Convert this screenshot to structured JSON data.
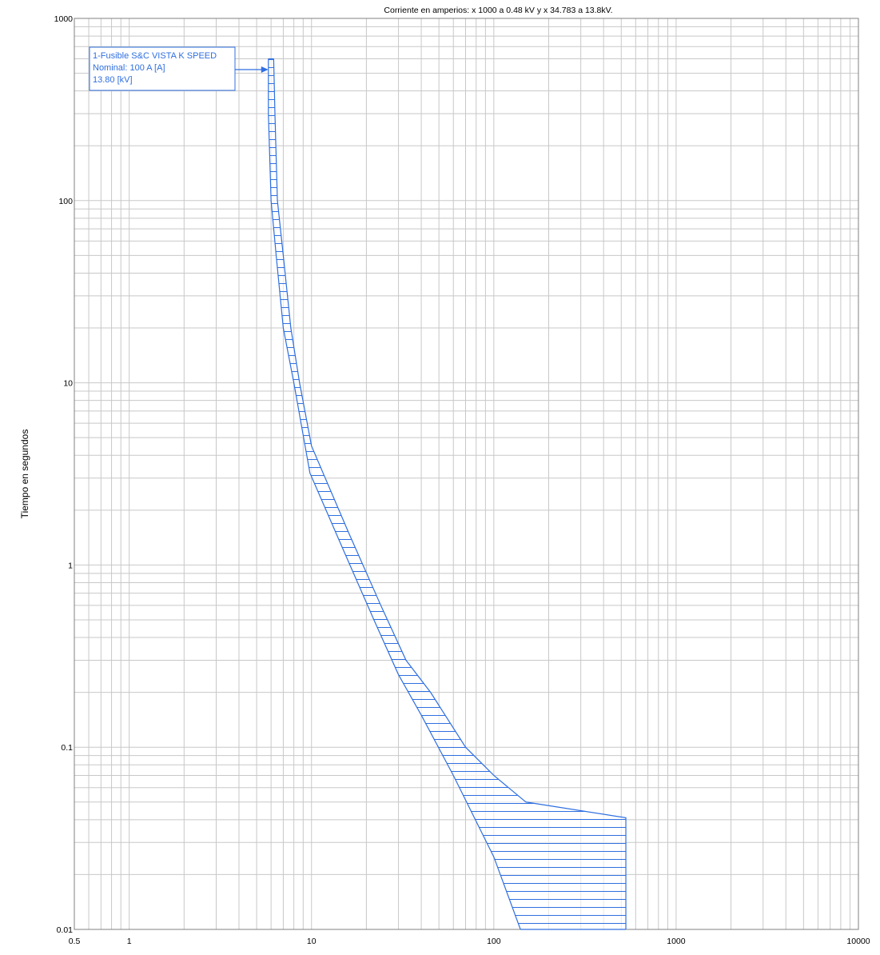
{
  "chart_data": {
    "type": "line",
    "title": "Corriente en amperios: x 1000 a 0.48 kV y x 34.783 a 13.8kV.",
    "xlabel": "",
    "ylabel": "Tiempo en segundos",
    "x_scale": "log",
    "y_scale": "log",
    "xlim": [
      0.5,
      10000
    ],
    "ylim": [
      0.01,
      1000
    ],
    "grid": true,
    "x_ticks": [
      "0.5",
      "1",
      "10",
      "100",
      "1000",
      "10000"
    ],
    "y_ticks": [
      "1000",
      "100",
      "10",
      "1",
      "0.1",
      "0.01"
    ],
    "colors": {
      "curve": "#2f6fe0",
      "grid": "#c8c8c8",
      "axis": "#808080"
    },
    "series": [
      {
        "name": "1-Fusible S&C VISTA K SPEED",
        "fill": "hatched-band",
        "min_melt": [
          [
            5.8,
            600
          ],
          [
            5.8,
            300
          ],
          [
            6.0,
            100
          ],
          [
            6.4,
            50
          ],
          [
            7.0,
            20
          ],
          [
            8.0,
            10
          ],
          [
            9.8,
            3.2
          ],
          [
            15,
            1.2
          ],
          [
            22,
            0.5
          ],
          [
            30,
            0.25
          ],
          [
            40,
            0.15
          ],
          [
            60,
            0.07
          ],
          [
            100,
            0.025
          ],
          [
            140,
            0.01
          ]
        ],
        "max_clear": [
          [
            6.2,
            600
          ],
          [
            6.3,
            300
          ],
          [
            6.5,
            100
          ],
          [
            7.0,
            50
          ],
          [
            7.7,
            20
          ],
          [
            8.6,
            10
          ],
          [
            10.0,
            4.5
          ],
          [
            16,
            1.5
          ],
          [
            24,
            0.6
          ],
          [
            33,
            0.3
          ],
          [
            45,
            0.2
          ],
          [
            70,
            0.1
          ],
          [
            100,
            0.07
          ],
          [
            150,
            0.05
          ],
          [
            530,
            0.041
          ],
          [
            530,
            0.01
          ]
        ]
      }
    ],
    "annotation": {
      "lines": [
        "1-Fusible S&C VISTA K SPEED",
        "Nominal: 100 A [A]",
        "13.80 [kV]"
      ],
      "points_to": [
        5.8,
        600
      ]
    }
  }
}
